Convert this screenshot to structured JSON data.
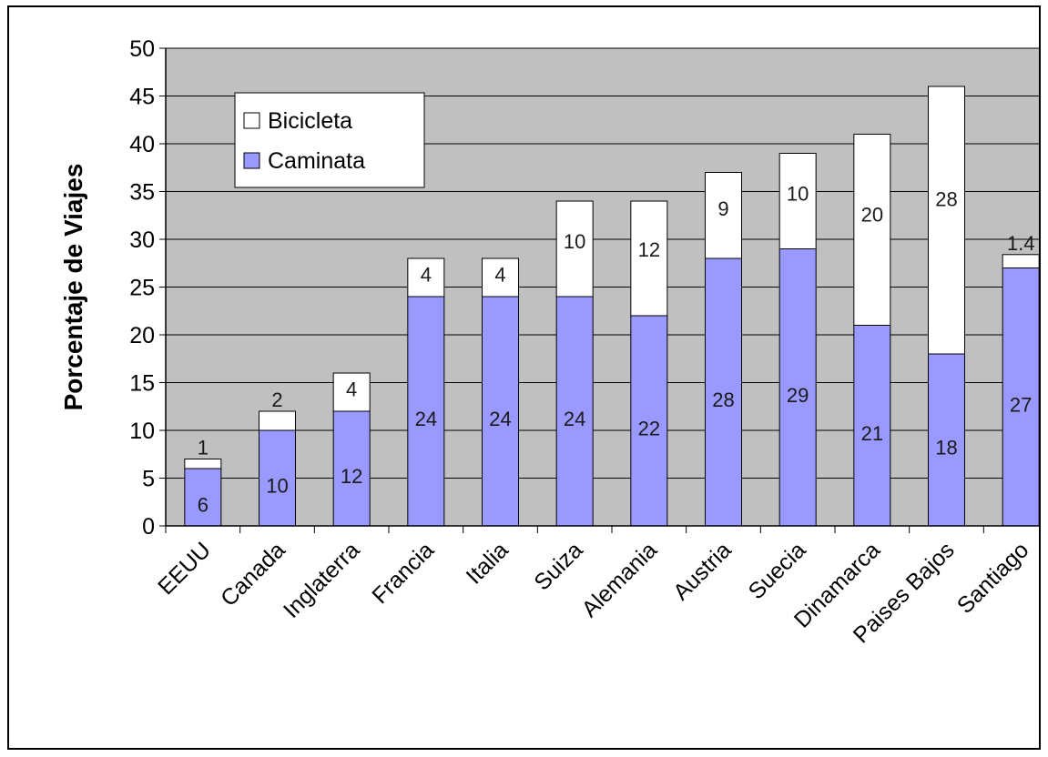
{
  "chart_data": {
    "type": "bar",
    "stacked": true,
    "categories": [
      "EEUU",
      "Canada",
      "Inglaterra",
      "Francia",
      "Italia",
      "Suiza",
      "Alemania",
      "Austria",
      "Suecia",
      "Dinamarca",
      "Paises Bajos",
      "Santiago"
    ],
    "series": [
      {
        "name": "Caminata",
        "color": "#9999ff",
        "values": [
          6,
          10,
          12,
          24,
          24,
          24,
          22,
          28,
          29,
          21,
          18,
          27
        ],
        "labels": [
          "6",
          "10",
          "12",
          "24",
          "24",
          "24",
          "22",
          "28",
          "29",
          "21",
          "18",
          "27"
        ]
      },
      {
        "name": "Bicicleta",
        "color": "#ffffff",
        "values": [
          1,
          2,
          4,
          4,
          4,
          10,
          12,
          9,
          10,
          20,
          28,
          1.4
        ],
        "labels": [
          "1",
          "2",
          "4",
          "4",
          "4",
          "10",
          "12",
          "9",
          "10",
          "20",
          "28",
          "1.4"
        ]
      }
    ],
    "ylabel": "Porcentaje de Viajes",
    "xlabel": "",
    "ylim": [
      0,
      50
    ],
    "ytick_step": 5,
    "grid": true,
    "plot_background": "#c0c0c0",
    "legend_position": "top-left",
    "legend_order": [
      "Bicicleta",
      "Caminata"
    ]
  }
}
